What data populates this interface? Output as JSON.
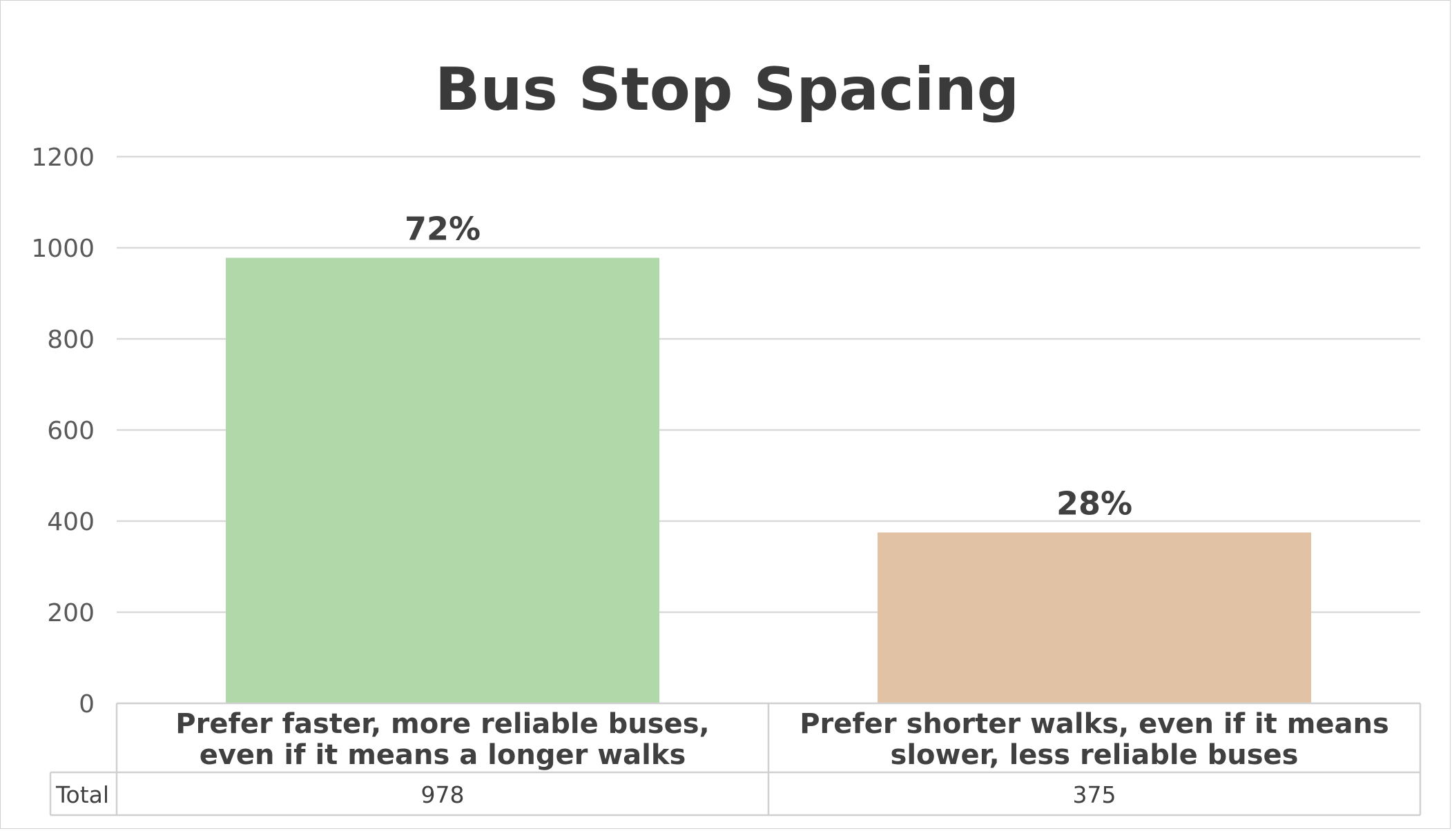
{
  "chart_data": {
    "type": "bar",
    "title": "Bus Stop Spacing",
    "categories": [
      [
        "Prefer faster, more reliable buses,",
        "even if it means a longer walks"
      ],
      [
        "Prefer shorter walks, even if it means",
        "slower, less reliable buses"
      ]
    ],
    "values": [
      978,
      375
    ],
    "data_labels": [
      "72%",
      "28%"
    ],
    "bar_colors": [
      "#b0d8a8",
      "#e1c2a5"
    ],
    "ylim": [
      0,
      1200
    ],
    "yticks": [
      "0",
      "200",
      "400",
      "600",
      "800",
      "1000",
      "1200"
    ],
    "grid": true,
    "table": {
      "row_header": "Total",
      "values": [
        "978",
        "375"
      ]
    },
    "colors": {
      "title": "#3a3a3a",
      "text": "#404040",
      "tick": "#595959",
      "grid": "#d9d9d9",
      "table_border": "#d0d0d0"
    }
  }
}
